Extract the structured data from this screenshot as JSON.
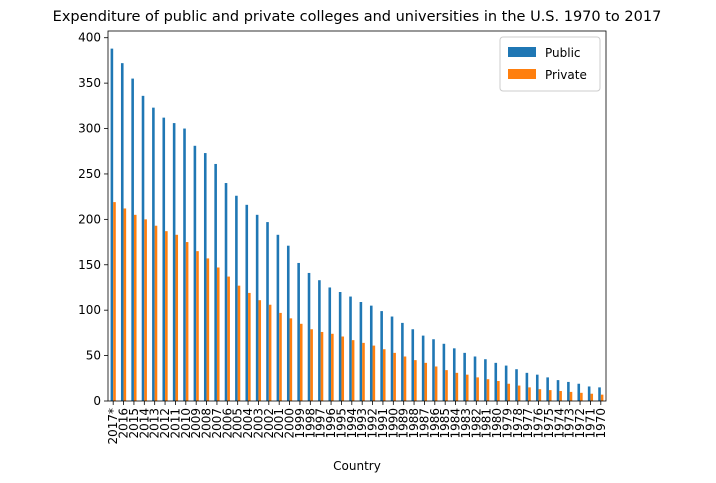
{
  "chart_data": {
    "type": "bar",
    "title": "Expenditure of public and private colleges and universities in the U.S. 1970 to 2017",
    "x_label": "Country",
    "categories": [
      "2017*",
      "2016",
      "2015",
      "2014",
      "2013",
      "2012",
      "2011",
      "2010",
      "2009",
      "2008",
      "2007",
      "2006",
      "2005",
      "2004",
      "2003",
      "2002",
      "2001",
      "2000",
      "1999",
      "1998",
      "1997",
      "1996",
      "1995",
      "1994",
      "1993",
      "1992",
      "1991",
      "1990",
      "1989",
      "1988",
      "1987",
      "1986",
      "1985",
      "1984",
      "1983",
      "1982",
      "1981",
      "1980",
      "1979",
      "1978",
      "1977",
      "1976",
      "1975",
      "1974",
      "1973",
      "1972",
      "1971",
      "1970"
    ],
    "series": [
      {
        "name": "Public",
        "color": "#1f77b4",
        "values": [
          388,
          372,
          355,
          336,
          323,
          312,
          306,
          300,
          281,
          273,
          261,
          240,
          226,
          216,
          205,
          197,
          183,
          171,
          152,
          141,
          133,
          125,
          120,
          115,
          109,
          105,
          99,
          93,
          86,
          79,
          72,
          68,
          63,
          58,
          53,
          49,
          46,
          42,
          39,
          35,
          31,
          29,
          26,
          23,
          21,
          19,
          16,
          15
        ]
      },
      {
        "name": "Private",
        "color": "#ff7f0e",
        "values": [
          219,
          212,
          205,
          200,
          193,
          187,
          183,
          175,
          165,
          157,
          147,
          137,
          127,
          119,
          111,
          106,
          97,
          91,
          85,
          79,
          76,
          74,
          71,
          67,
          64,
          61,
          57,
          53,
          49,
          45,
          42,
          38,
          34,
          31,
          29,
          26,
          24,
          22,
          19,
          17,
          15,
          13,
          12,
          11,
          10,
          9,
          8,
          7
        ]
      }
    ],
    "ylim": [
      0,
      407.4
    ],
    "yticks": [
      0,
      50,
      100,
      150,
      200,
      250,
      300,
      350,
      400
    ],
    "legend": "upper right"
  }
}
